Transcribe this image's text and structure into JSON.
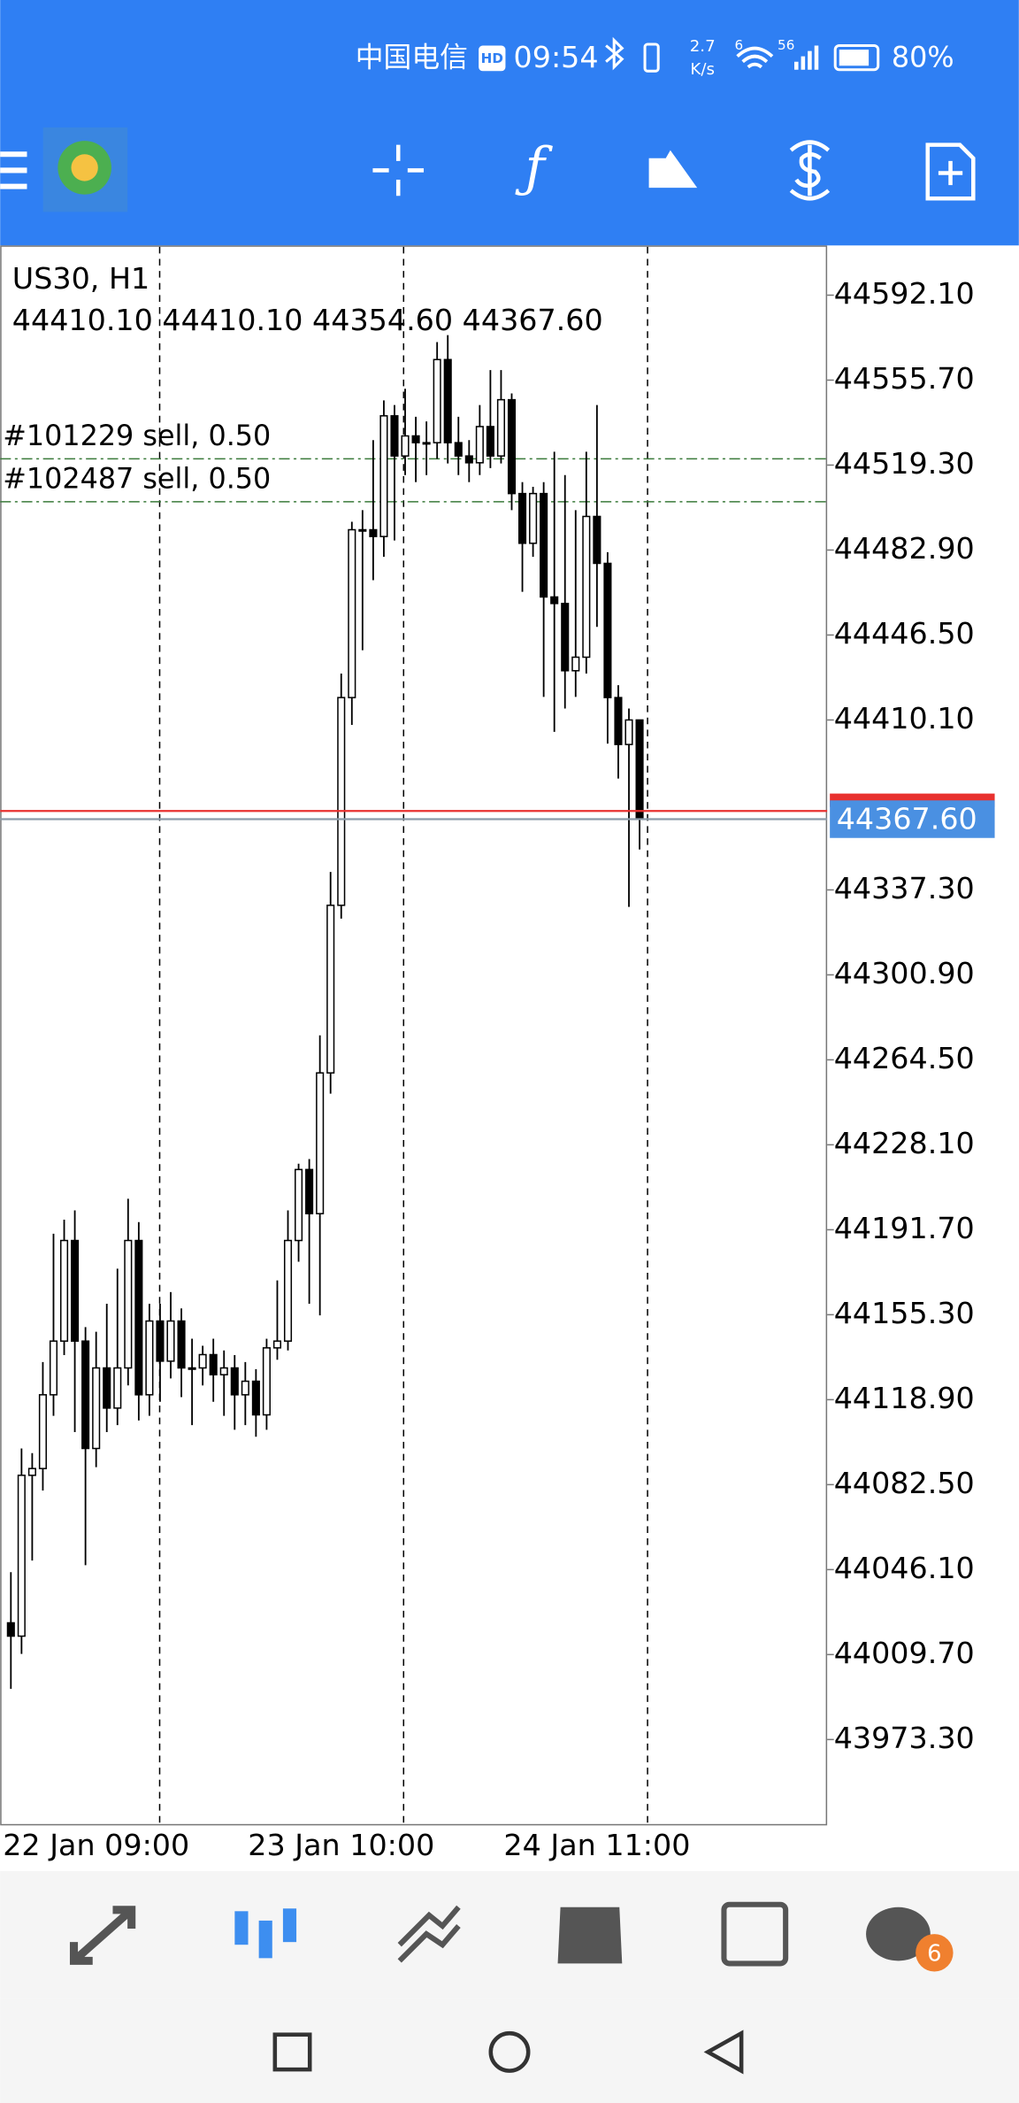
{
  "status_bar": {
    "carrier": "中国电信",
    "hd": "HD",
    "time": "09:54",
    "speed": "2.7",
    "speed_unit": "K/s",
    "wifi_label": "6",
    "signal_label": "56",
    "battery": "80%"
  },
  "chart_data": {
    "type": "candlestick",
    "title": "US30, H1",
    "subtitle": "44410.10 44410.10 44354.60 44367.60",
    "categories": [
      "22 Jan 09:00",
      null,
      null,
      null,
      null,
      null,
      null,
      null,
      null,
      null,
      null,
      null,
      null,
      null,
      null,
      null,
      null,
      null,
      null,
      null,
      null,
      null,
      null,
      "23 Jan 10:00",
      null,
      null,
      null,
      null,
      null,
      null,
      null,
      null,
      null,
      null,
      null,
      null,
      null,
      null,
      null,
      null,
      null,
      null,
      null,
      null,
      null,
      null,
      null,
      "24 Jan 11:00",
      null,
      null,
      null,
      null,
      null,
      null,
      null,
      null,
      null,
      null,
      null,
      null
    ],
    "open": [
      44023.3,
      44017.6,
      44086.5,
      44089.4,
      44121.0,
      44144.0,
      44187.1,
      44144.0,
      44098.0,
      44132.5,
      44115.3,
      44132.5,
      44187.1,
      44121.0,
      44152.6,
      44135.4,
      44152.6,
      44132.5,
      44132.5,
      44138.2,
      44129.6,
      44132.5,
      44121.0,
      44126.8,
      44112.4,
      44141.1,
      44144.0,
      44187.1,
      44217.5,
      44198.6,
      44258.9,
      44330.7,
      44419.7,
      44491.6,
      44491.6,
      44488.7,
      44540.4,
      44523.2,
      44531.8,
      44528.9,
      44528.9,
      44564.5,
      44528.9,
      44523.2,
      44520.3,
      44535.8,
      44523.2,
      44547.3,
      44507.1,
      44485.8,
      44507.1,
      44462.8,
      44460.0,
      44431.2,
      44437.0,
      44497.3,
      44477.2,
      44419.7,
      44399.6,
      44410.1
    ],
    "high": [
      44045.0,
      44098.0,
      44096.0,
      44135.0,
      44190.0,
      44196.0,
      44200.0,
      44150.0,
      44148.0,
      44160.0,
      44175.0,
      44205.0,
      44195.0,
      44160.0,
      44160.0,
      44165.0,
      44158.0,
      44145.0,
      44142.0,
      44145.0,
      44140.0,
      44138.0,
      44135.0,
      44132.0,
      44145.0,
      44170.0,
      44200.0,
      44220.0,
      44222.0,
      44275.0,
      44345.0,
      44430.0,
      44495.0,
      44500.0,
      44530.0,
      44547.0,
      44545.0,
      44552.0,
      44540.0,
      44538.0,
      44572.0,
      44575.0,
      44540.0,
      44530.0,
      44545.0,
      44560.0,
      44560.0,
      44550.0,
      44512.0,
      44510.0,
      44512.0,
      44525.0,
      44515.0,
      44500.0,
      44525.0,
      44545.0,
      44482.0,
      44425.0,
      44415.0,
      44410.1
    ],
    "low": [
      43995.0,
      44010.0,
      44050.0,
      44080.0,
      44112.0,
      44138.0,
      44105.0,
      44048.0,
      44090.0,
      44105.0,
      44108.0,
      44125.0,
      44110.0,
      44112.0,
      44118.0,
      44128.0,
      44120.0,
      44108.0,
      44125.0,
      44118.0,
      44112.0,
      44106.0,
      44108.0,
      44103.0,
      44106.0,
      44136.0,
      44140.0,
      44178.0,
      44160.0,
      44155.0,
      44250.0,
      44325.0,
      44408.0,
      44440.0,
      44470.0,
      44480.0,
      44487.0,
      44515.0,
      44512.0,
      44515.0,
      44522.0,
      44520.0,
      44515.0,
      44512.0,
      44515.0,
      44518.0,
      44520.0,
      44500.0,
      44465.0,
      44480.0,
      44420.0,
      44405.0,
      44415.0,
      44420.0,
      44430.0,
      44450.0,
      44400.0,
      44385.0,
      44330.0,
      44354.6
    ],
    "close": [
      44017.6,
      44086.5,
      44089.4,
      44121.0,
      44144.0,
      44187.1,
      44144.0,
      44098.0,
      44132.5,
      44115.3,
      44132.5,
      44187.1,
      44121.0,
      44152.6,
      44135.4,
      44152.6,
      44132.5,
      44132.5,
      44138.2,
      44129.6,
      44132.5,
      44121.0,
      44126.8,
      44112.4,
      44141.1,
      44144.0,
      44187.1,
      44217.5,
      44198.6,
      44258.9,
      44330.7,
      44419.7,
      44491.6,
      44491.6,
      44488.7,
      44540.4,
      44523.2,
      44531.8,
      44528.9,
      44528.9,
      44564.5,
      44528.9,
      44523.2,
      44520.3,
      44535.8,
      44523.2,
      44547.3,
      44507.1,
      44485.8,
      44507.1,
      44462.8,
      44460.0,
      44431.2,
      44437.0,
      44497.3,
      44477.2,
      44419.7,
      44399.6,
      44410.1,
      44367.6
    ],
    "up_color": "#ffffff",
    "down_color": "#000000",
    "ylim": [
      43937.1,
      44613.4
    ],
    "yticks": [
      {
        "value": 44592.1,
        "label": "44592.10"
      },
      {
        "value": 44555.7,
        "label": "44555.70"
      },
      {
        "value": 44519.3,
        "label": "44519.30"
      },
      {
        "value": 44482.9,
        "label": "44482.90"
      },
      {
        "value": 44446.5,
        "label": "44446.50"
      },
      {
        "value": 44410.1,
        "label": "44410.10"
      },
      {
        "value": 44337.3,
        "label": "44337.30"
      },
      {
        "value": 44300.9,
        "label": "44300.90"
      },
      {
        "value": 44264.5,
        "label": "44264.50"
      },
      {
        "value": 44228.1,
        "label": "44228.10"
      },
      {
        "value": 44191.7,
        "label": "44191.70"
      },
      {
        "value": 44155.3,
        "label": "44155.30"
      },
      {
        "value": 44118.9,
        "label": "44118.90"
      },
      {
        "value": 44082.5,
        "label": "44082.50"
      },
      {
        "value": 44046.1,
        "label": "44046.10"
      },
      {
        "value": 44009.7,
        "label": "44009.70"
      },
      {
        "value": 43973.3,
        "label": "43973.30"
      }
    ],
    "orders": [
      {
        "label": "#101229 sell, 0.50",
        "price": 44522.0
      },
      {
        "label": "#102487 sell, 0.50",
        "price": 44503.6
      }
    ],
    "ask": 44371.1,
    "bid": {
      "value": 44367.6,
      "label": "44367.60"
    }
  },
  "bottom_nav": {
    "chat_badge": "6"
  }
}
